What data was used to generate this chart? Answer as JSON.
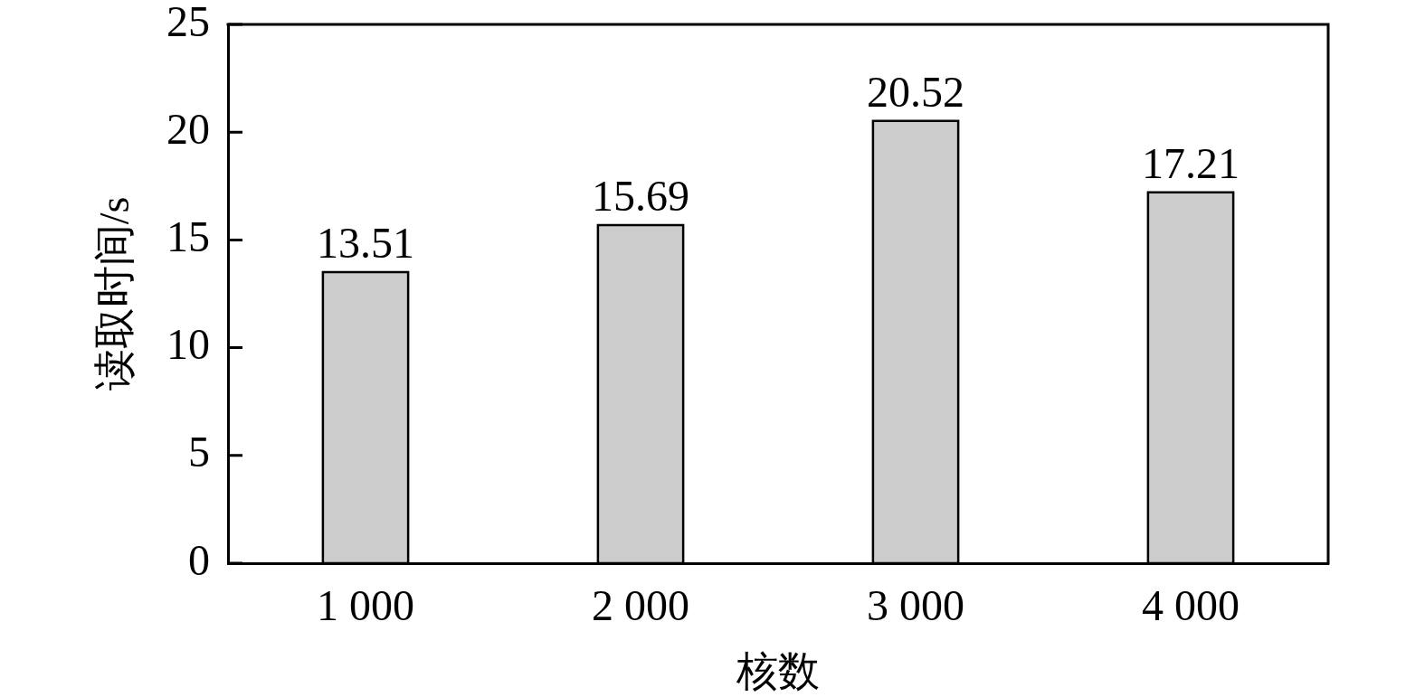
{
  "chart_data": {
    "type": "bar",
    "xlabel": "核数",
    "ylabel": "读取时间/s",
    "categories": [
      "1 000",
      "2 000",
      "3 000",
      "4 000"
    ],
    "values": [
      13.51,
      15.69,
      20.52,
      17.21
    ],
    "color": "#cccccc",
    "ylim": [
      0,
      25
    ],
    "yticks": [
      0,
      5,
      10,
      15,
      20,
      25
    ],
    "grid": false,
    "data_labels": true
  }
}
